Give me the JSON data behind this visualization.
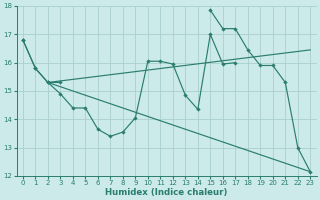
{
  "xlabel": "Humidex (Indice chaleur)",
  "color": "#2a7d6f",
  "bg_color": "#cceaea",
  "grid_color": "#aacece",
  "ylim": [
    12,
    18
  ],
  "xlim": [
    -0.5,
    23.5
  ],
  "yticks": [
    12,
    13,
    14,
    15,
    16,
    17,
    18
  ],
  "xticks": [
    0,
    1,
    2,
    3,
    4,
    5,
    6,
    7,
    8,
    9,
    10,
    11,
    12,
    13,
    14,
    15,
    16,
    17,
    18,
    19,
    20,
    21,
    22,
    23
  ],
  "line1_x": [
    0,
    1,
    2,
    3,
    4,
    5,
    6,
    7,
    8,
    9,
    10,
    11,
    12,
    13,
    14,
    15,
    16,
    17
  ],
  "line1_y": [
    16.8,
    15.8,
    15.3,
    14.9,
    14.4,
    14.4,
    13.65,
    13.4,
    13.55,
    14.05,
    16.05,
    16.05,
    15.95,
    14.85,
    14.35,
    17.0,
    15.95,
    16.0
  ],
  "line2_x": [
    0,
    1,
    2,
    3,
    15,
    16,
    17,
    18,
    19,
    20,
    21,
    22,
    23
  ],
  "line2_y": [
    16.8,
    15.8,
    15.3,
    15.3,
    17.85,
    17.2,
    17.2,
    16.45,
    15.9,
    15.9,
    15.3,
    13.0,
    12.15
  ],
  "line3_x": [
    2,
    23
  ],
  "line3_y": [
    15.3,
    16.45
  ],
  "line4_x": [
    2,
    23
  ],
  "line4_y": [
    15.3,
    12.15
  ]
}
